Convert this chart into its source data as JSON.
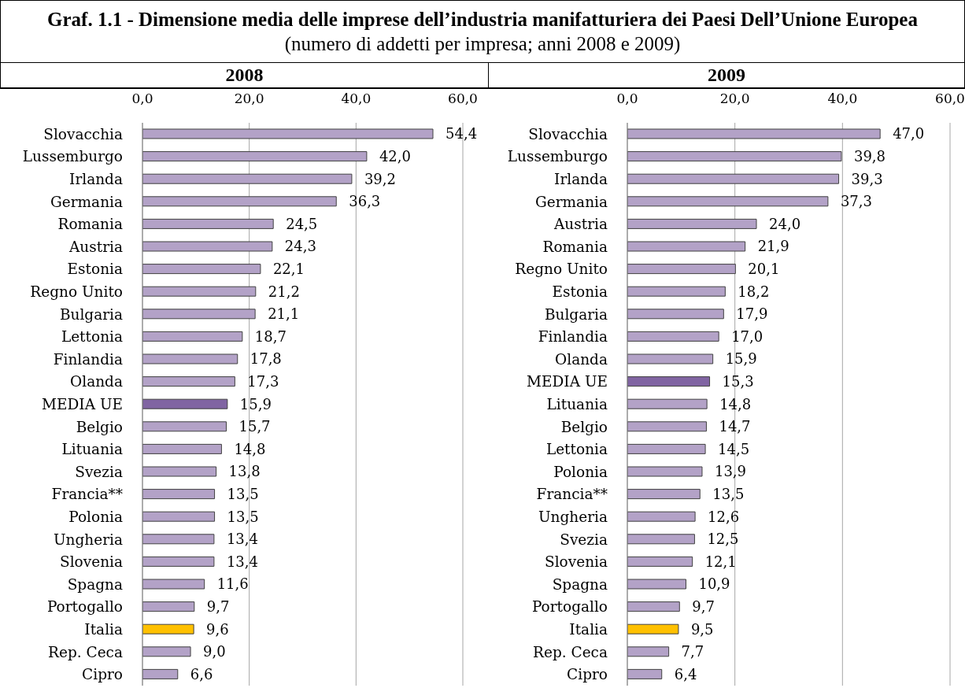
{
  "chart_data": [
    {
      "type": "bar",
      "orientation": "horizontal",
      "title": "2008",
      "annotations": [
        "Graf. 1.1 - Dimensione media delle imprese dell’industria manifatturiera dei Paesi Dell’Unione Europea",
        "(numero di addetti per impresa; anni 2008 e 2009)"
      ],
      "categories": [
        "Slovacchia",
        "Lussemburgo",
        "Irlanda",
        "Germania",
        "Romania",
        "Austria",
        "Estonia",
        "Regno Unito",
        "Bulgaria",
        "Lettonia",
        "Finlandia",
        "Olanda",
        "MEDIA UE",
        "Belgio",
        "Lituania",
        "Svezia",
        "Francia**",
        "Polonia",
        "Ungheria",
        "Slovenia",
        "Spagna",
        "Portogallo",
        "Italia",
        "Rep. Ceca",
        "Cipro"
      ],
      "values": [
        54.4,
        42.0,
        39.2,
        36.3,
        24.5,
        24.3,
        22.1,
        21.2,
        21.1,
        18.7,
        17.8,
        17.3,
        15.9,
        15.7,
        14.8,
        13.8,
        13.5,
        13.5,
        13.4,
        13.4,
        11.6,
        9.7,
        9.6,
        9.0,
        6.6
      ],
      "value_labels": [
        "54,4",
        "42,0",
        "39,2",
        "36,3",
        "24,5",
        "24,3",
        "22,1",
        "21,2",
        "21,1",
        "18,7",
        "17,8",
        "17,3",
        "15,9",
        "15,7",
        "14,8",
        "13,8",
        "13,5",
        "13,5",
        "13,4",
        "13,4",
        "11,6",
        "9,7",
        "9,6",
        "9,0",
        "6,6"
      ],
      "colors": [
        "#b3a2c7",
        "#b3a2c7",
        "#b3a2c7",
        "#b3a2c7",
        "#b3a2c7",
        "#b3a2c7",
        "#b3a2c7",
        "#b3a2c7",
        "#b3a2c7",
        "#b3a2c7",
        "#b3a2c7",
        "#b3a2c7",
        "#8064a2",
        "#b3a2c7",
        "#b3a2c7",
        "#b3a2c7",
        "#b3a2c7",
        "#b3a2c7",
        "#b3a2c7",
        "#b3a2c7",
        "#b3a2c7",
        "#b3a2c7",
        "#ffc000",
        "#b3a2c7",
        "#b3a2c7"
      ],
      "xlim": [
        0,
        60
      ],
      "xticks": [
        {
          "value": 0,
          "label": "0,0"
        },
        {
          "value": 20,
          "label": "20,0"
        },
        {
          "value": 40,
          "label": "40,0"
        },
        {
          "value": 60,
          "label": "60,0"
        }
      ],
      "grid": "x"
    },
    {
      "type": "bar",
      "orientation": "horizontal",
      "title": "2009",
      "categories": [
        "Slovacchia",
        "Lussemburgo",
        "Irlanda",
        "Germania",
        "Austria",
        "Romania",
        "Regno Unito",
        "Estonia",
        "Bulgaria",
        "Finlandia",
        "Olanda",
        "MEDIA UE",
        "Lituania",
        "Belgio",
        "Lettonia",
        "Polonia",
        "Francia**",
        "Ungheria",
        "Svezia",
        "Slovenia",
        "Spagna",
        "Portogallo",
        "Italia",
        "Rep. Ceca",
        "Cipro"
      ],
      "values": [
        47.0,
        39.8,
        39.3,
        37.3,
        24.0,
        21.9,
        20.1,
        18.2,
        17.9,
        17.0,
        15.9,
        15.3,
        14.8,
        14.7,
        14.5,
        13.9,
        13.5,
        12.6,
        12.5,
        12.1,
        10.9,
        9.7,
        9.5,
        7.7,
        6.4
      ],
      "value_labels": [
        "47,0",
        "39,8",
        "39,3",
        "37,3",
        "24,0",
        "21,9",
        "20,1",
        "18,2",
        "17,9",
        "17,0",
        "15,9",
        "15,3",
        "14,8",
        "14,7",
        "14,5",
        "13,9",
        "13,5",
        "12,6",
        "12,5",
        "12,1",
        "10,9",
        "9,7",
        "9,5",
        "7,7",
        "6,4"
      ],
      "colors": [
        "#b3a2c7",
        "#b3a2c7",
        "#b3a2c7",
        "#b3a2c7",
        "#b3a2c7",
        "#b3a2c7",
        "#b3a2c7",
        "#b3a2c7",
        "#b3a2c7",
        "#b3a2c7",
        "#b3a2c7",
        "#8064a2",
        "#b3a2c7",
        "#b3a2c7",
        "#b3a2c7",
        "#b3a2c7",
        "#b3a2c7",
        "#b3a2c7",
        "#b3a2c7",
        "#b3a2c7",
        "#b3a2c7",
        "#b3a2c7",
        "#ffc000",
        "#b3a2c7",
        "#b3a2c7"
      ],
      "xlim": [
        0,
        60
      ],
      "xticks": [
        {
          "value": 0,
          "label": "0,0"
        },
        {
          "value": 20,
          "label": "20,0"
        },
        {
          "value": 40,
          "label": "40,0"
        },
        {
          "value": 60,
          "label": "60,0"
        }
      ],
      "grid": "x"
    }
  ]
}
